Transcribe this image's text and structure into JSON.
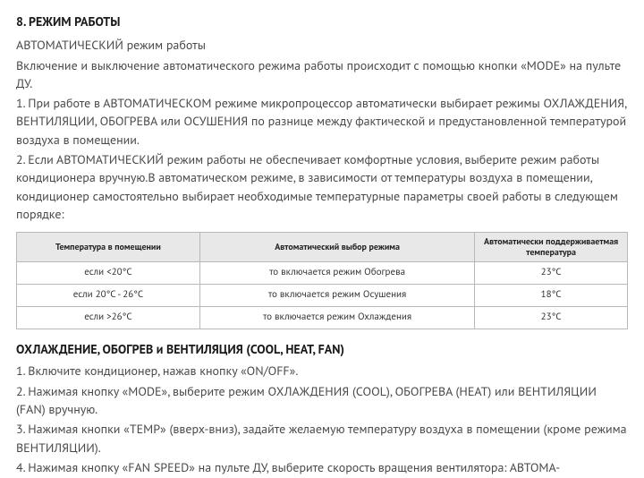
{
  "section": {
    "title": "8. РЕЖИМ РАБОТЫ",
    "intro_line": "АВТОМАТИЧЕСКИЙ режим  работы",
    "intro_para": "Включение и выключение автоматического режима работы происходит с помощью кнопки «MODE» на пульте ДУ.",
    "para1": "1. При работе в АВТОМАТИЧЕСКОМ режиме микропроцессор автоматически выбирает режимы ОХЛАЖДЕНИЯ, ВЕНТИЛЯЦИИ, ОБОГРЕВА или ОСУШЕНИЯ по разнице между фактической и преду­становленной температурой воздуха в помещении.",
    "para2": "2. Если АВТОМАТИЧЕСКИЙ режим работы не обеспечивает комфортные условия, выберите режим работы  кондиционера вручную.В автоматическом режиме, в зависимости от температуры воздуха в помещении, кондиционер самостоятельно выбирает необходимые температурные параметры своей работы в следующем порядке:"
  },
  "table": {
    "header": {
      "col1": "Температура в помещении",
      "col2": "Автоматический выбор режима",
      "col3": "Автоматически поддерживаетмая температура"
    },
    "rows": [
      {
        "c1": "если <20°C",
        "c2": "то включается режим Обогрева",
        "c3": "23°C"
      },
      {
        "c1": "если 20°C - 26°C",
        "c2": "то включается режим Осушения",
        "c3": "18°C"
      },
      {
        "c1": "если >26°C",
        "c2": "то включается режим Охлаждения",
        "c3": "23°C"
      }
    ],
    "border_color": "#b8b8b8",
    "header_bg": "#e8e8e8"
  },
  "sub": {
    "title": "ОХЛАЖДЕНИЕ, ОБОГРЕВ и ВЕНТИЛЯЦИЯ (COOL, HEAT, FAN)",
    "p1": "1. Включите кондиционер, нажав кнопку «ON/OFF».",
    "p2": "2. Нажимая кнопку «MODE», выберите режим ОХЛАЖДЕНИЯ (COOL), ОБОГРЕВА (HEAT) или ВЕНТИ­ЛЯЦИИ (FAN) вручную.",
    "p3": "3. Нажимая кнопки «TEMP» (вверх-вниз), задайте желаемую температуру воздуха в помещении (кроме режима ВЕНТИЛЯЦИИ).",
    "p4": "4. Нажимая кнопку «FAN SPEED» на пульте ДУ, выберите скорость вращения вентилятора: АВТОМА-"
  }
}
